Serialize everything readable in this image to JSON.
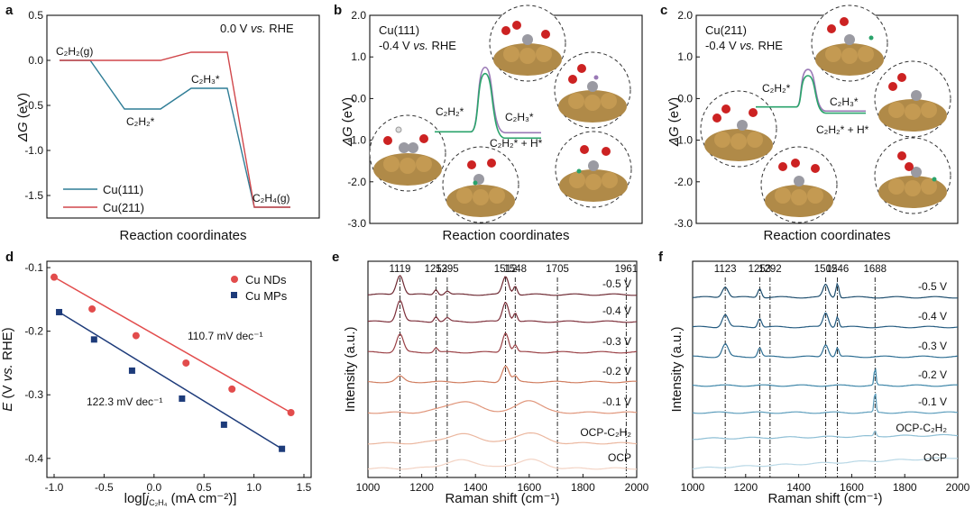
{
  "colors": {
    "cu111": "#2f7d96",
    "cu211": "#d0474b",
    "nds": "#e24c4c",
    "mps": "#1d3b7a",
    "green": "#2aa36b",
    "purple": "#9a79b6"
  },
  "chart_data": [
    {
      "type": "line",
      "panel": "a",
      "title": "0.0 V vs. RHE",
      "xlabel": "Reaction coordinates",
      "ylabel": "ΔG (eV)",
      "ylim": [
        -1.75,
        0.5
      ],
      "yticks": [
        "-1.5",
        "-1.0",
        "-0.5",
        "0.0",
        "0.5"
      ],
      "states": [
        "C2H2(g)",
        "C2H2*",
        "C2H3*",
        "C2H4(g)"
      ],
      "state_labels": [
        "C₂H₂(g)",
        "C₂H₂*",
        "C₂H₃*",
        "C₂H₄(g)"
      ],
      "series": [
        {
          "name": "Cu(111)",
          "values": [
            0.0,
            -0.54,
            -0.31,
            -1.63
          ]
        },
        {
          "name": "Cu(211)",
          "values": [
            0.0,
            0.0,
            0.09,
            -1.63
          ]
        }
      ]
    },
    {
      "type": "line",
      "panel": "b",
      "title": "Cu(111)",
      "subtitle": "-0.4 V vs. RHE",
      "xlabel": "Reaction coordinates",
      "ylabel": "ΔG (eV)",
      "ylim": [
        -3.0,
        2.0
      ],
      "yticks": [
        "-3.0",
        "-2.0",
        "-1.0",
        "0.0",
        "1.0",
        "2.0"
      ],
      "initial_energy": -0.8,
      "barrier_peak": 0.75,
      "series": [
        {
          "name": "C2H3*",
          "label": "C₂H₃*",
          "values": [
            -0.8,
            0.75,
            -0.82
          ]
        },
        {
          "name": "C2H2* + H*",
          "label": "C₂H₂* + H*",
          "values": [
            -0.8,
            0.6,
            -0.95
          ]
        }
      ],
      "state_label": "C₂H₂*"
    },
    {
      "type": "line",
      "panel": "c",
      "title": "Cu(211)",
      "subtitle": "-0.4 V vs. RHE",
      "xlabel": "Reaction coordinates",
      "ylabel": "ΔG (eV)",
      "ylim": [
        -3.0,
        2.0
      ],
      "yticks": [
        "-3.0",
        "-2.0",
        "-1.0",
        "0.0",
        "1.0",
        "2.0"
      ],
      "initial_energy": -0.2,
      "barrier_peak": 0.7,
      "series": [
        {
          "name": "C2H3*",
          "label": "C₂H₃*",
          "values": [
            -0.2,
            0.7,
            -0.3
          ]
        },
        {
          "name": "C2H2* + H*",
          "label": "C₂H₂* + H*",
          "values": [
            -0.2,
            0.55,
            -0.35
          ]
        }
      ],
      "state_label": "C₂H₂*"
    },
    {
      "type": "scatter",
      "panel": "d",
      "xlabel": "log[jC2H4 (mA cm-2)]",
      "ylabel": "E (V vs. RHE)",
      "xlim": [
        -1.0,
        1.5
      ],
      "ylim": [
        -0.43,
        -0.09
      ],
      "xticks": [
        "-1.0",
        "-0.5",
        "0.0",
        "0.5",
        "1.0",
        "1.5"
      ],
      "yticks": [
        "-0.4",
        "-0.3",
        "-0.2",
        "-0.1"
      ],
      "series": [
        {
          "name": "Cu NDs",
          "slope_label": "110.7 mV dec⁻¹",
          "x": [
            -1.0,
            -0.62,
            -0.18,
            0.32,
            0.78,
            1.37
          ],
          "y": [
            -0.115,
            -0.165,
            -0.207,
            -0.25,
            -0.291,
            -0.328
          ]
        },
        {
          "name": "Cu MPs",
          "slope_label": "122.3 mV dec⁻¹",
          "x": [
            -0.95,
            -0.6,
            -0.22,
            0.28,
            0.7,
            1.28
          ],
          "y": [
            -0.17,
            -0.213,
            -0.262,
            -0.306,
            -0.347,
            -0.385
          ]
        }
      ]
    },
    {
      "type": "line",
      "panel": "e",
      "xlabel": "Raman shift (cm-1)",
      "ylabel": "Intensity (a.u.)",
      "xlim": [
        1000,
        2000
      ],
      "xticks": [
        "1000",
        "1200",
        "1400",
        "1600",
        "1800",
        "2000"
      ],
      "peaks": [
        1119,
        1253,
        1295,
        1512,
        1548,
        1705,
        1961
      ],
      "peak_labels": [
        "1119",
        "1253",
        "1295",
        "1512",
        "1548",
        "1705",
        "1961"
      ],
      "spectra": [
        {
          "label": "-0.5 V",
          "color": "#6e2a33"
        },
        {
          "label": "-0.4 V",
          "color": "#7d2f3a"
        },
        {
          "label": "-0.3 V",
          "color": "#9a4045"
        },
        {
          "label": "-0.2 V",
          "color": "#d07d5f"
        },
        {
          "label": "-0.1 V",
          "color": "#e0957a"
        },
        {
          "label": "OCP-C₂H₂",
          "color": "#ebb79f"
        },
        {
          "label": "OCP",
          "color": "#f3d3c4"
        }
      ]
    },
    {
      "type": "line",
      "panel": "f",
      "xlabel": "Raman shift (cm-1)",
      "ylabel": "Intensity (a.u.)",
      "xlim": [
        1000,
        2000
      ],
      "xticks": [
        "1000",
        "1200",
        "1400",
        "1600",
        "1800",
        "2000"
      ],
      "peaks": [
        1123,
        1253,
        1292,
        1502,
        1546,
        1688
      ],
      "peak_labels": [
        "1123",
        "1253",
        "1292",
        "1502",
        "1546",
        "1688"
      ],
      "spectra": [
        {
          "label": "-0.5 V",
          "color": "#1e4e6e"
        },
        {
          "label": "-0.4 V",
          "color": "#245b80"
        },
        {
          "label": "-0.3 V",
          "color": "#2d6e93"
        },
        {
          "label": "-0.2 V",
          "color": "#3c85a8"
        },
        {
          "label": "-0.1 V",
          "color": "#5c9dbc"
        },
        {
          "label": "OCP-C₂H₂",
          "color": "#8ebfd5"
        },
        {
          "label": "OCP",
          "color": "#b9d8e6"
        }
      ]
    }
  ],
  "text": {
    "a_label": "a",
    "b_label": "b",
    "c_label": "c",
    "d_label": "d",
    "e_label": "e",
    "f_label": "f",
    "delta_g": "ΔG",
    "ev": " (eV)",
    "a_cond_v": "0.0 V ",
    "vs": "vs.",
    "a_cond_rhe": " RHE",
    "b_cond_v": "-0.4 V ",
    "b_cond_rhe": " RHE",
    "c_cond_v": "-0.4 V ",
    "c_cond_rhe": " RHE",
    "d_ylabel_e": "E",
    "d_ylabel_rest": " (V ",
    "d_ylabel_rhe": " RHE)",
    "d_xlabel_pre": "log[",
    "d_xlabel_j": "j",
    "d_xlabel_sub": "C₂H₄",
    "d_xlabel_post": " (mA cm⁻²)]",
    "raman_xlabel": "Raman shift (cm⁻¹)"
  }
}
